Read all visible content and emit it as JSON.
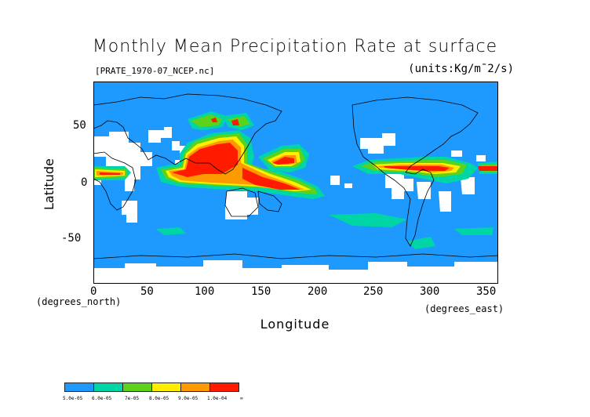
{
  "title": "Monthly Mean Precipitation Rate at surface",
  "file_label": "[PRATE_1970-07_NCEP.nc]",
  "units_label": "(units:Kg/m¯2/s)",
  "y_axis": {
    "label": "Latitude",
    "unit_note": "(degrees_north)",
    "ticks": [
      "50",
      "0",
      "-50"
    ]
  },
  "x_axis": {
    "label": "Longitude",
    "unit_note": "(degrees_east)",
    "ticks": [
      "0",
      "50",
      "100",
      "150",
      "200",
      "250",
      "300",
      "350"
    ]
  },
  "colorbar": {
    "colors": [
      "#1e9aff",
      "#00d5a5",
      "#5cd21b",
      "#ffee00",
      "#ff9900",
      "#ff1a00"
    ],
    "labels": [
      "5.0e-05",
      "6.0e-05",
      "7e-05",
      "8.0e-05",
      "9.0e-05",
      "1.0e-04",
      "∞"
    ]
  },
  "map_colors": {
    "ocean": "#1e9aff",
    "missing": "#ffffff",
    "land_outline": "#000000"
  },
  "chart_data": {
    "type": "heatmap",
    "title": "Monthly Mean Precipitation Rate at surface",
    "variable_file": "[PRATE_1970-07_NCEP.nc]",
    "units": "Kg/m¯2/s",
    "xlabel": "Longitude",
    "ylabel": "Latitude",
    "xlim": [
      0,
      360
    ],
    "ylim": [
      -90,
      90
    ],
    "x_ticks": [
      0,
      50,
      100,
      150,
      200,
      250,
      300,
      350
    ],
    "y_ticks": [
      50,
      0,
      -50
    ],
    "levels": [
      5e-05,
      6e-05,
      7e-05,
      8e-05,
      9e-05,
      0.0001
    ],
    "heavy_rain_regions": [
      {
        "lon_range": [
          70,
          135
        ],
        "lat_range": [
          5,
          35
        ],
        "level": ">1.0e-04"
      },
      {
        "lon_range": [
          150,
          190
        ],
        "lat_range": [
          5,
          25
        ],
        "level": ">1.0e-04"
      },
      {
        "lon_range": [
          150,
          205
        ],
        "lat_range": [
          -12,
          3
        ],
        "level": ">1.0e-04"
      },
      {
        "lon_range": [
          270,
          320
        ],
        "lat_range": [
          5,
          15
        ],
        "level": ">1.0e-04"
      },
      {
        "lon_range": [
          0,
          45
        ],
        "lat_range": [
          5,
          15
        ],
        "level": ">1.0e-04"
      }
    ]
  }
}
